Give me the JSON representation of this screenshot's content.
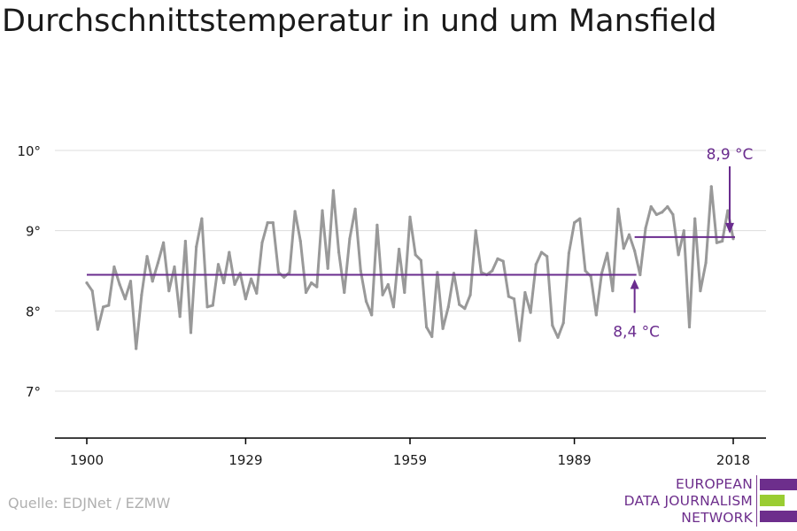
{
  "title": "Durchschnittstemperatur in und um Mansfield",
  "source": "Quelle: EDJNet / EZMW",
  "logo": {
    "lines": [
      "EUROPEAN",
      "DATA JOURNALISM",
      "NETWORK"
    ],
    "colors": {
      "purple": "#6d2e8c",
      "green": "#9acd32"
    }
  },
  "colors": {
    "series": "#999999",
    "reference": "#6a2c8e",
    "grid": "#dddddd",
    "axis": "#000000"
  },
  "chart_data": {
    "type": "line",
    "title": "Durchschnittstemperatur in und um Mansfield",
    "xlabel": "",
    "ylabel": "",
    "x_ticks": [
      1900,
      1929,
      1959,
      1989,
      2018
    ],
    "y_ticks": [
      7,
      8,
      9,
      10
    ],
    "y_tick_labels": [
      "7°",
      "8°",
      "9°",
      "10°"
    ],
    "xlim": [
      1900,
      2018
    ],
    "ylim": [
      6.5,
      10.3
    ],
    "grid": true,
    "series": [
      {
        "x": [
          1900,
          1901,
          1902,
          1903,
          1904,
          1905,
          1906,
          1907,
          1908,
          1909,
          1910,
          1911,
          1912,
          1913,
          1914,
          1915,
          1916,
          1917,
          1918,
          1919,
          1920,
          1921,
          1922,
          1923,
          1924,
          1925,
          1926,
          1927,
          1928,
          1929,
          1930,
          1931,
          1932,
          1933,
          1934,
          1935,
          1936,
          1937,
          1938,
          1939,
          1940,
          1941,
          1942,
          1943,
          1944,
          1945,
          1946,
          1947,
          1948,
          1949,
          1950,
          1951,
          1952,
          1953,
          1954,
          1955,
          1956,
          1957,
          1958,
          1959,
          1960,
          1961,
          1962,
          1963,
          1964,
          1965,
          1966,
          1967,
          1968,
          1969,
          1970,
          1971,
          1972,
          1973,
          1974,
          1975,
          1976,
          1977,
          1978,
          1979,
          1980,
          1981,
          1982,
          1983,
          1984,
          1985,
          1986,
          1987,
          1988,
          1989,
          1990,
          1991,
          1992,
          1993,
          1994,
          1995,
          1996,
          1997,
          1998,
          1999,
          2000,
          2001,
          2002,
          2003,
          2004,
          2005,
          2006,
          2007,
          2008,
          2009,
          2010,
          2011,
          2012,
          2013,
          2014,
          2015,
          2016,
          2017,
          2018
        ],
        "values": [
          8.35,
          8.25,
          7.77,
          8.05,
          8.07,
          8.55,
          8.33,
          8.15,
          8.37,
          7.53,
          8.2,
          8.68,
          8.37,
          8.6,
          8.85,
          8.25,
          8.55,
          7.93,
          8.87,
          7.73,
          8.8,
          9.15,
          8.05,
          8.07,
          8.58,
          8.35,
          8.73,
          8.33,
          8.47,
          8.15,
          8.4,
          8.22,
          8.85,
          9.1,
          9.1,
          8.48,
          8.42,
          8.48,
          9.24,
          8.87,
          8.23,
          8.35,
          8.3,
          9.25,
          8.53,
          9.5,
          8.73,
          8.23,
          8.9,
          9.27,
          8.5,
          8.12,
          7.95,
          9.07,
          8.2,
          8.33,
          8.05,
          8.77,
          8.23,
          9.17,
          8.7,
          8.63,
          7.8,
          7.68,
          8.48,
          7.78,
          8.05,
          8.47,
          8.08,
          8.03,
          8.2,
          9.0,
          8.48,
          8.45,
          8.5,
          8.65,
          8.62,
          8.18,
          8.15,
          7.63,
          8.23,
          7.98,
          8.58,
          8.73,
          8.68,
          7.82,
          7.67,
          7.85,
          8.72,
          9.1,
          9.15,
          8.5,
          8.43,
          7.95,
          8.47,
          8.72,
          8.25,
          9.27,
          8.78,
          8.95,
          8.75,
          8.45,
          9.03,
          9.3,
          9.2,
          9.23,
          9.3,
          9.2,
          8.7,
          9.0,
          7.8,
          9.15,
          8.25,
          8.6,
          9.55,
          8.85,
          8.87,
          9.25,
          8.9
        ]
      }
    ],
    "reference_lines": [
      {
        "x_start": 1900,
        "x_end": 2000,
        "y": 8.45,
        "label": "8,4 °C"
      },
      {
        "x_start": 2000,
        "x_end": 2018,
        "y": 8.92,
        "label": "8,9 °C"
      }
    ]
  }
}
